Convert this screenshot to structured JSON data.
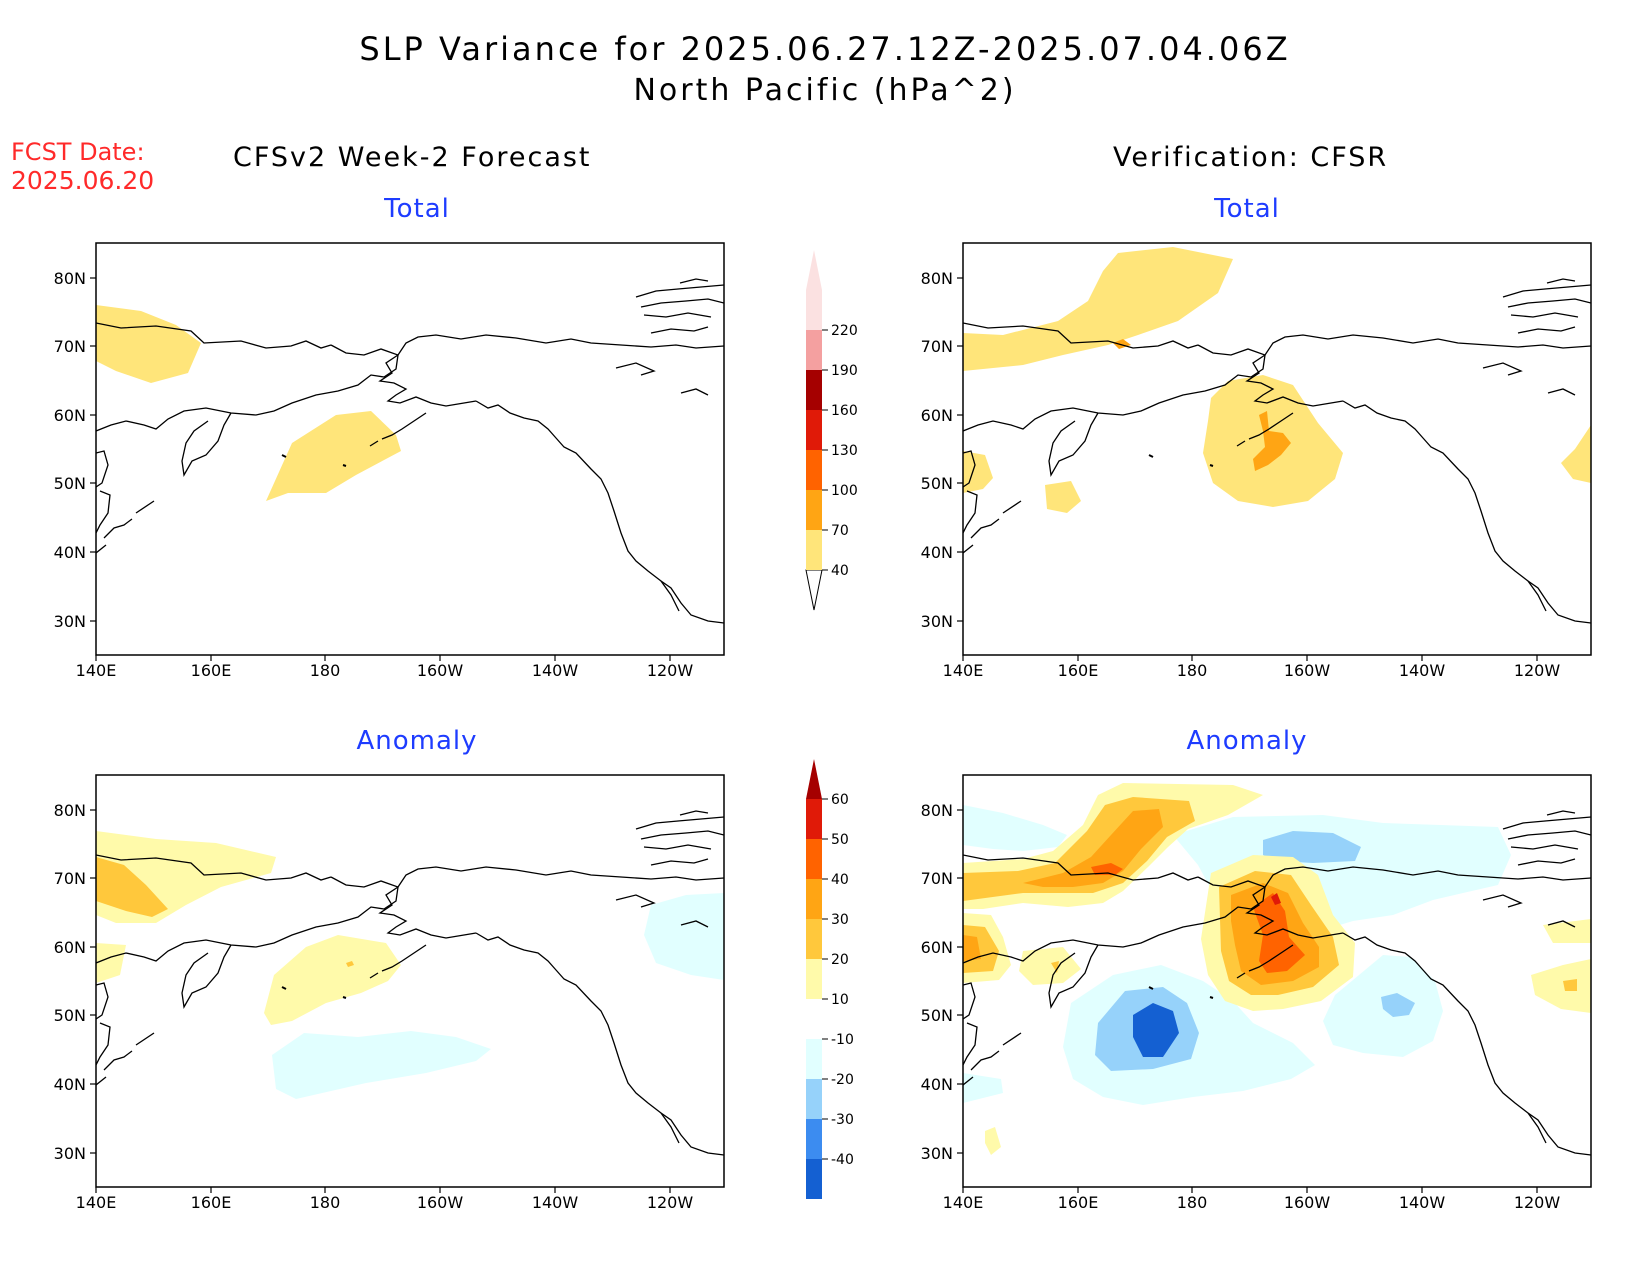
{
  "title": {
    "line1": "SLP Variance for 2025.06.27.12Z-2025.07.04.06Z",
    "line2": "North Pacific (hPa^2)"
  },
  "forecast_date": {
    "label": "FCST Date:",
    "value": "2025.06.20"
  },
  "columns": {
    "left": "CFSv2 Week-2 Forecast",
    "right": "Verification: CFSR"
  },
  "panels": {
    "top_left": "Total",
    "top_right": "Total",
    "bottom_left": "Anomaly",
    "bottom_right": "Anomaly"
  },
  "axes": {
    "lat_labels": [
      "80N",
      "70N",
      "60N",
      "50N",
      "40N",
      "30N"
    ],
    "lon_labels": [
      "140E",
      "160E",
      "180",
      "160W",
      "140W",
      "120W"
    ]
  },
  "colorbar_total": {
    "levels": [
      "40",
      "70",
      "100",
      "130",
      "160",
      "190",
      "220"
    ],
    "colors": [
      "#ffe57a",
      "#ffa514",
      "#ff6300",
      "#e01a08",
      "#a50000",
      "#f4a0a0",
      "#fbe1e1"
    ]
  },
  "colorbar_anomaly": {
    "levels": [
      "-40",
      "-30",
      "-20",
      "-10",
      "10",
      "20",
      "30",
      "40",
      "50",
      "60"
    ],
    "colors": {
      "neg": [
        "#1460d2",
        "#3c8cf0",
        "#96d2fa",
        "#e1ffff"
      ],
      "neu": "#ffffff",
      "pos": [
        "#fffaaa",
        "#ffc83c",
        "#ffa514",
        "#ff6300",
        "#e01a08",
        "#a50000"
      ]
    }
  }
}
